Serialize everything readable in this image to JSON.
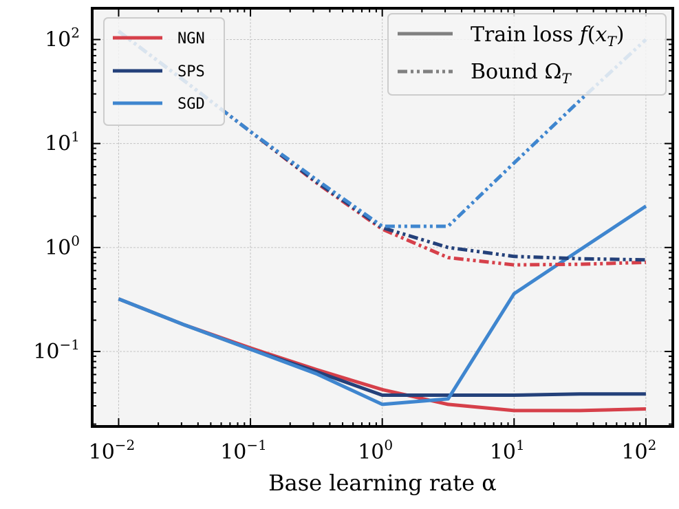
{
  "chart_data": {
    "type": "line",
    "title": "",
    "xlabel": "Base learning rate α",
    "ylabel": "",
    "xscale": "log",
    "yscale": "log",
    "xlim": [
      0.0063,
      160
    ],
    "ylim": [
      0.019,
      200
    ],
    "grid": true,
    "x": [
      0.01,
      0.0316,
      0.1,
      0.316,
      1,
      3.16,
      10,
      31.6,
      100
    ],
    "x_ticks": [
      {
        "value": 0.01,
        "base": "10",
        "exp": "−2"
      },
      {
        "value": 0.1,
        "base": "10",
        "exp": "−1"
      },
      {
        "value": 1,
        "base": "10",
        "exp": "0"
      },
      {
        "value": 10,
        "base": "10",
        "exp": "1"
      },
      {
        "value": 100,
        "base": "10",
        "exp": "2"
      }
    ],
    "y_ticks": [
      {
        "value": 0.1,
        "base": "10",
        "exp": "−1"
      },
      {
        "value": 1,
        "base": "10",
        "exp": "0"
      },
      {
        "value": 10,
        "base": "10",
        "exp": "1"
      },
      {
        "value": 100,
        "base": "10",
        "exp": "2"
      }
    ],
    "series": [
      {
        "name": "NGN",
        "kind": "train_loss",
        "color": "#d6404a",
        "values": [
          0.32,
          0.18,
          0.108,
          0.067,
          0.043,
          0.031,
          0.027,
          0.027,
          0.028
        ]
      },
      {
        "name": "SPS",
        "kind": "train_loss",
        "color": "#24417a",
        "values": [
          0.32,
          0.18,
          0.105,
          0.064,
          0.038,
          0.038,
          0.038,
          0.039,
          0.039
        ]
      },
      {
        "name": "SGD",
        "kind": "train_loss",
        "color": "#3f86cf",
        "values": [
          0.32,
          0.18,
          0.105,
          0.061,
          0.031,
          0.035,
          0.36,
          0.95,
          2.5
        ]
      },
      {
        "name": "NGN",
        "kind": "bound",
        "color": "#d6404a",
        "values": [
          120,
          40,
          13,
          4.2,
          1.5,
          0.8,
          0.68,
          0.69,
          0.72
        ]
      },
      {
        "name": "SPS",
        "kind": "bound",
        "color": "#24417a",
        "values": [
          120,
          40,
          13,
          4.3,
          1.55,
          1.0,
          0.82,
          0.78,
          0.76
        ]
      },
      {
        "name": "SGD",
        "kind": "bound",
        "color": "#3f86cf",
        "values": [
          120,
          40,
          13,
          4.5,
          1.6,
          1.6,
          6.5,
          26,
          100
        ]
      }
    ],
    "legend_methods": [
      {
        "label": "NGN",
        "color": "#d6404a"
      },
      {
        "label": "SPS",
        "color": "#24417a"
      },
      {
        "label": "SGD",
        "color": "#3f86cf"
      }
    ],
    "legend_styles": {
      "train": {
        "text": "Train loss ",
        "math": "f",
        "paren_open": "(",
        "var": "x",
        "sub": "T",
        "paren_close": ")"
      },
      "bound": {
        "text": "Bound ",
        "math": "Ω",
        "sub": "T"
      }
    }
  }
}
